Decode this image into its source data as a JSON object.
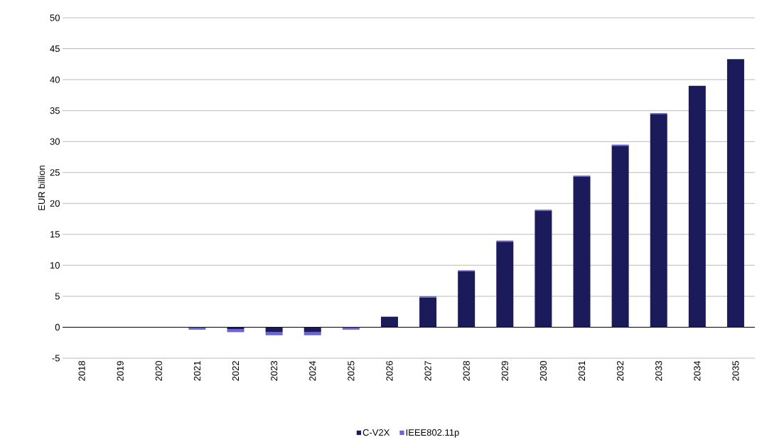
{
  "chart_data": {
    "type": "bar",
    "stacked": true,
    "ylabel": "EUR billion",
    "categories": [
      "2018",
      "2019",
      "2020",
      "2021",
      "2022",
      "2023",
      "2024",
      "2025",
      "2026",
      "2027",
      "2028",
      "2029",
      "2030",
      "2031",
      "2032",
      "2033",
      "2034",
      "2035"
    ],
    "series": [
      {
        "name": "C-V2X",
        "color": "#1b1a5a",
        "values": [
          0,
          0,
          0,
          -0.1,
          -0.3,
          -0.8,
          -0.8,
          -0.1,
          1.7,
          4.8,
          9.0,
          13.8,
          18.8,
          24.3,
          29.3,
          34.4,
          39.0,
          43.3
        ]
      },
      {
        "name": "IEEE802.11p",
        "color": "#6b63d6",
        "values": [
          0,
          0,
          0,
          -0.3,
          -0.5,
          -0.5,
          -0.5,
          -0.3,
          0,
          0.2,
          0.2,
          0.2,
          0.2,
          0.2,
          0.2,
          0.2,
          0,
          0
        ]
      }
    ],
    "ylim": [
      -5,
      50
    ],
    "yticks": [
      -5,
      0,
      5,
      10,
      15,
      20,
      25,
      30,
      35,
      40,
      45,
      50
    ],
    "grid": "y",
    "legend": "bottom"
  }
}
